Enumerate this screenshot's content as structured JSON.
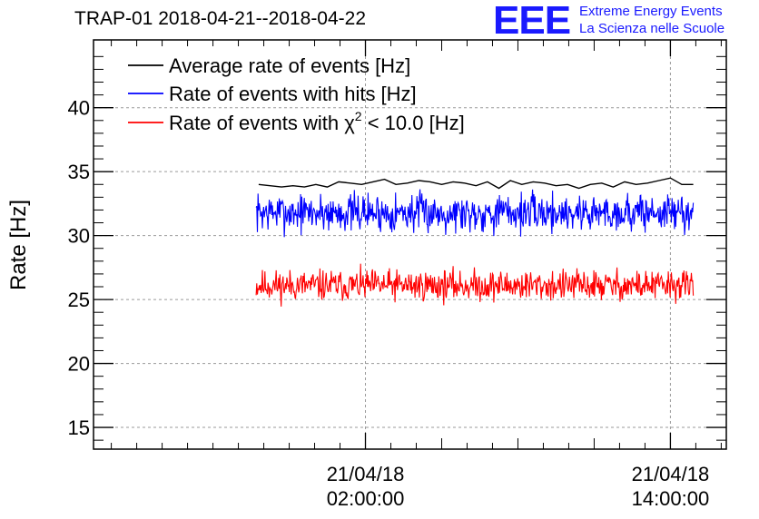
{
  "chart_data": {
    "type": "line",
    "title": "TRAP-01 2018-04-21--2018-04-22",
    "ylabel": "Rate [Hz]",
    "xlabel": "",
    "ylim": [
      13.3,
      45.3
    ],
    "yticks": [
      15,
      20,
      25,
      30,
      35,
      40
    ],
    "xlim_hours": [
      -8.7,
      16.2
    ],
    "xticks": [
      {
        "hour": 2,
        "date": "21/04/18",
        "time": "02:00:00"
      },
      {
        "hour": 14,
        "date": "21/04/18",
        "time": "14:00:00"
      }
    ],
    "grid": true,
    "legend_position": "top-left",
    "series": [
      {
        "name": "Average rate of events [Hz]",
        "color": "#000000",
        "x_start_hour": -2.2,
        "x_end_hour": 14.9,
        "values": [
          34.0,
          33.9,
          33.8,
          33.9,
          33.8,
          34.0,
          33.8,
          34.2,
          34.1,
          34.0,
          34.2,
          34.4,
          34.0,
          34.1,
          34.3,
          34.2,
          34.0,
          34.2,
          34.1,
          33.9,
          34.2,
          33.7,
          34.3,
          34.0,
          34.2,
          34.1,
          33.9,
          34.0,
          33.7,
          34.0,
          34.1,
          33.8,
          34.2,
          34.0,
          34.1,
          34.3,
          34.5,
          34.0,
          34.0
        ]
      },
      {
        "name": "Rate of events with hits [Hz]",
        "color": "#0000ff",
        "x_start_hour": -2.3,
        "x_end_hour": 14.9,
        "mean": 31.8,
        "range": [
          29.3,
          33.8
        ]
      },
      {
        "name": "Rate of events with χ² < 10.0 [Hz]",
        "color": "#ff0000",
        "x_start_hour": -2.3,
        "x_end_hour": 14.9,
        "mean": 26.1,
        "range": [
          24.2,
          27.8
        ]
      }
    ],
    "legend_labels": [
      {
        "text": "Average rate of events [Hz]"
      },
      {
        "text": "Rate of events with hits [Hz]"
      },
      {
        "pre": "Rate of events with ",
        "chi": "χ",
        "sup": "2",
        "post": " < 10.0 [Hz]"
      }
    ]
  },
  "logo": {
    "mark": "EEE",
    "line1": "Extreme Energy Events",
    "line2": "La Scienza nelle Scuole",
    "color": "#1a1aff"
  }
}
